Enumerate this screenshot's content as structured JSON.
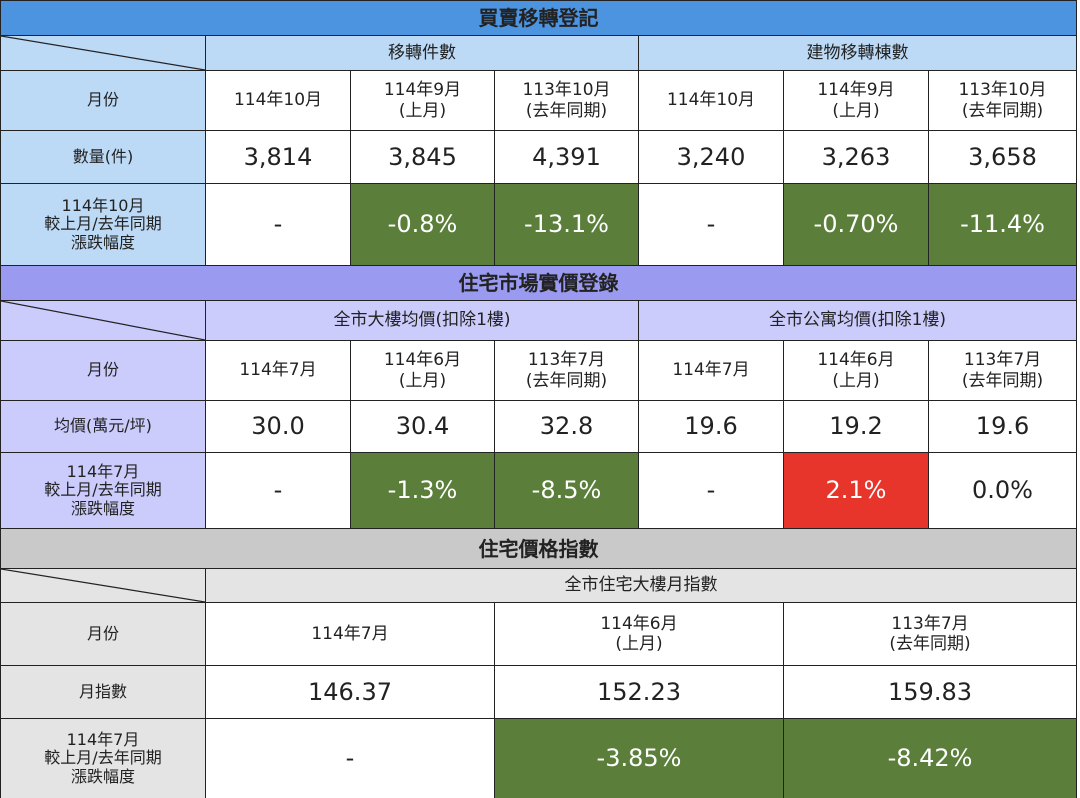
{
  "sections": [
    {
      "title": "買賣移轉登記",
      "theme": {
        "title": "#4d94e0",
        "label": "#bcdaf6"
      },
      "groups": [
        "移轉件數",
        "建物移轉棟數"
      ],
      "month_label": "月份",
      "months": [
        "114年10月",
        "114年9月\n(上月)",
        "113年10月\n(去年同期)",
        "114年10月",
        "114年9月\n(上月)",
        "113年10月\n(去年同期)"
      ],
      "metric_label": "數量(件)",
      "values": [
        "3,814",
        "3,845",
        "4,391",
        "3,240",
        "3,263",
        "3,658"
      ],
      "change_label": "114年10月\n較上月/去年同期\n漲跌幅度",
      "changes": [
        {
          "text": "-",
          "color": "#ffffff"
        },
        {
          "text": "-0.8%",
          "color": "#5b7f3b"
        },
        {
          "text": "-13.1%",
          "color": "#5b7f3b"
        },
        {
          "text": "-",
          "color": "#ffffff"
        },
        {
          "text": "-0.70%",
          "color": "#5b7f3b"
        },
        {
          "text": "-11.4%",
          "color": "#5b7f3b"
        }
      ]
    },
    {
      "title": "住宅市場實價登錄",
      "theme": {
        "title": "#9a9af0",
        "label": "#ccccfc"
      },
      "groups": [
        "全市大樓均價(扣除1樓)",
        "全市公寓均價(扣除1樓)"
      ],
      "month_label": "月份",
      "months": [
        "114年7月",
        "114年6月\n(上月)",
        "113年7月\n(去年同期)",
        "114年7月",
        "114年6月\n(上月)",
        "113年7月\n(去年同期)"
      ],
      "metric_label": "均價(萬元/坪)",
      "values": [
        "30.0",
        "30.4",
        "32.8",
        "19.6",
        "19.2",
        "19.6"
      ],
      "change_label": "114年7月\n較上月/去年同期\n漲跌幅度",
      "changes": [
        {
          "text": "-",
          "color": "#ffffff"
        },
        {
          "text": "-1.3%",
          "color": "#5b7f3b"
        },
        {
          "text": "-8.5%",
          "color": "#5b7f3b"
        },
        {
          "text": "-",
          "color": "#ffffff"
        },
        {
          "text": "2.1%",
          "color": "#e8352b"
        },
        {
          "text": "0.0%",
          "color": "#ffffff"
        }
      ]
    },
    {
      "title": "住宅價格指數",
      "theme": {
        "title": "#c9c9c9",
        "label": "#e4e4e4"
      },
      "groups": [
        "全市住宅大樓月指數"
      ],
      "month_label": "月份",
      "months": [
        "114年7月",
        "114年6月\n(上月)",
        "113年7月\n(去年同期)"
      ],
      "metric_label": "月指數",
      "values": [
        "146.37",
        "152.23",
        "159.83"
      ],
      "change_label": "114年7月\n較上月/去年同期\n漲跌幅度",
      "changes": [
        {
          "text": "-",
          "color": "#ffffff"
        },
        {
          "text": "-3.85%",
          "color": "#5b7f3b"
        },
        {
          "text": "-8.42%",
          "color": "#5b7f3b"
        }
      ]
    }
  ]
}
